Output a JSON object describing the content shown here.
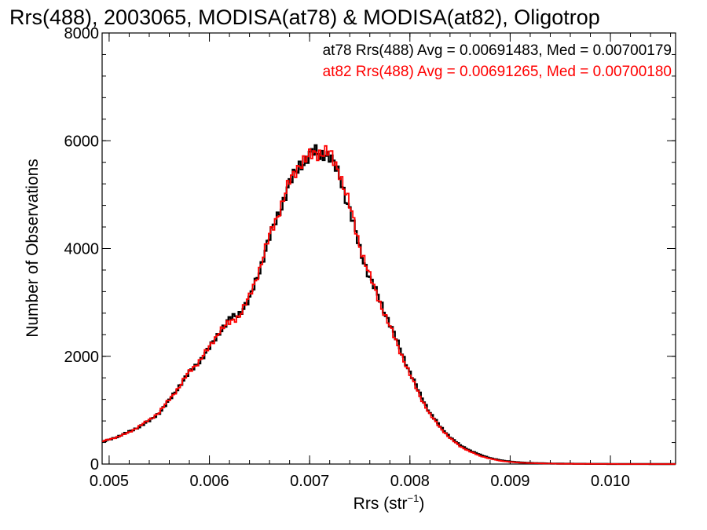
{
  "chart_data": {
    "type": "line",
    "title": "Rrs(488), 2003065, MODISA(at78) & MODISA(at82), Oligotrop",
    "xlabel_main": "Rrs (str",
    "xlabel_sup": "−1",
    "xlabel_close": ")",
    "ylabel": "Number of Observations",
    "xlim": [
      0.00493,
      0.01065
    ],
    "ylim": [
      0,
      8000
    ],
    "x_ticks": [
      {
        "value": 0.005,
        "label": "0.005"
      },
      {
        "value": 0.006,
        "label": "0.006"
      },
      {
        "value": 0.007,
        "label": "0.007"
      },
      {
        "value": 0.008,
        "label": "0.008"
      },
      {
        "value": 0.009,
        "label": "0.009"
      },
      {
        "value": 0.01,
        "label": "0.010"
      }
    ],
    "y_ticks": [
      {
        "value": 0,
        "label": "0"
      },
      {
        "value": 2000,
        "label": "2000"
      },
      {
        "value": 4000,
        "label": "4000"
      },
      {
        "value": 6000,
        "label": "6000"
      },
      {
        "value": 8000,
        "label": "8000"
      }
    ],
    "legend": [
      {
        "text": "at78 Rrs(488) Avg = 0.00691483, Med = 0.00700179",
        "color": "#000000"
      },
      {
        "text": "at82 Rrs(488) Avg = 0.00691265, Med = 0.00700180",
        "color": "#ff0000"
      }
    ],
    "series": [
      {
        "name": "at78",
        "color": "#000000",
        "x": [
          0.00493,
          0.005,
          0.0051,
          0.0052,
          0.0053,
          0.0054,
          0.0055,
          0.0056,
          0.0057,
          0.0058,
          0.0059,
          0.006,
          0.0061,
          0.0062,
          0.0063,
          0.0064,
          0.0065,
          0.0066,
          0.0067,
          0.0068,
          0.0069,
          0.007,
          0.00705,
          0.0071,
          0.00715,
          0.0072,
          0.0073,
          0.0074,
          0.0075,
          0.0076,
          0.0077,
          0.0078,
          0.0079,
          0.008,
          0.0081,
          0.0082,
          0.0083,
          0.0084,
          0.0085,
          0.0086,
          0.0087,
          0.0088,
          0.0089,
          0.009,
          0.0091,
          0.0092,
          0.0093,
          0.0094,
          0.0095,
          0.0097,
          0.01,
          0.0103,
          0.01065
        ],
        "y": [
          410,
          450,
          520,
          600,
          690,
          800,
          950,
          1180,
          1450,
          1700,
          1900,
          2150,
          2450,
          2680,
          2800,
          3050,
          3600,
          4200,
          4700,
          5200,
          5550,
          5720,
          5800,
          5750,
          5780,
          5690,
          5350,
          4700,
          4000,
          3450,
          3050,
          2600,
          2150,
          1700,
          1300,
          950,
          700,
          500,
          350,
          250,
          170,
          110,
          70,
          45,
          30,
          20,
          15,
          10,
          7,
          4,
          2,
          1,
          0
        ]
      },
      {
        "name": "at82",
        "color": "#ff0000",
        "x": [
          0.00493,
          0.005,
          0.0051,
          0.0052,
          0.0053,
          0.0054,
          0.0055,
          0.0056,
          0.0057,
          0.0058,
          0.0059,
          0.006,
          0.0061,
          0.0062,
          0.0063,
          0.0064,
          0.0065,
          0.0066,
          0.0067,
          0.0068,
          0.0069,
          0.007,
          0.00705,
          0.0071,
          0.00715,
          0.0072,
          0.0073,
          0.0074,
          0.0075,
          0.0076,
          0.0077,
          0.0078,
          0.0079,
          0.008,
          0.0081,
          0.0082,
          0.0083,
          0.0084,
          0.0085,
          0.0086,
          0.0087,
          0.0088,
          0.0089,
          0.009,
          0.0091,
          0.0092,
          0.0093,
          0.0094,
          0.0095,
          0.0097,
          0.01,
          0.0103,
          0.01065
        ],
        "y": [
          420,
          460,
          510,
          590,
          700,
          820,
          960,
          1200,
          1430,
          1720,
          1910,
          2170,
          2470,
          2620,
          2760,
          3100,
          3620,
          4230,
          4720,
          5230,
          5580,
          5700,
          5760,
          5790,
          5800,
          5750,
          5420,
          4780,
          4060,
          3480,
          3000,
          2550,
          2100,
          1660,
          1260,
          920,
          680,
          480,
          330,
          230,
          150,
          100,
          60,
          40,
          25,
          17,
          12,
          8,
          5,
          3,
          1,
          0,
          0
        ]
      }
    ]
  }
}
